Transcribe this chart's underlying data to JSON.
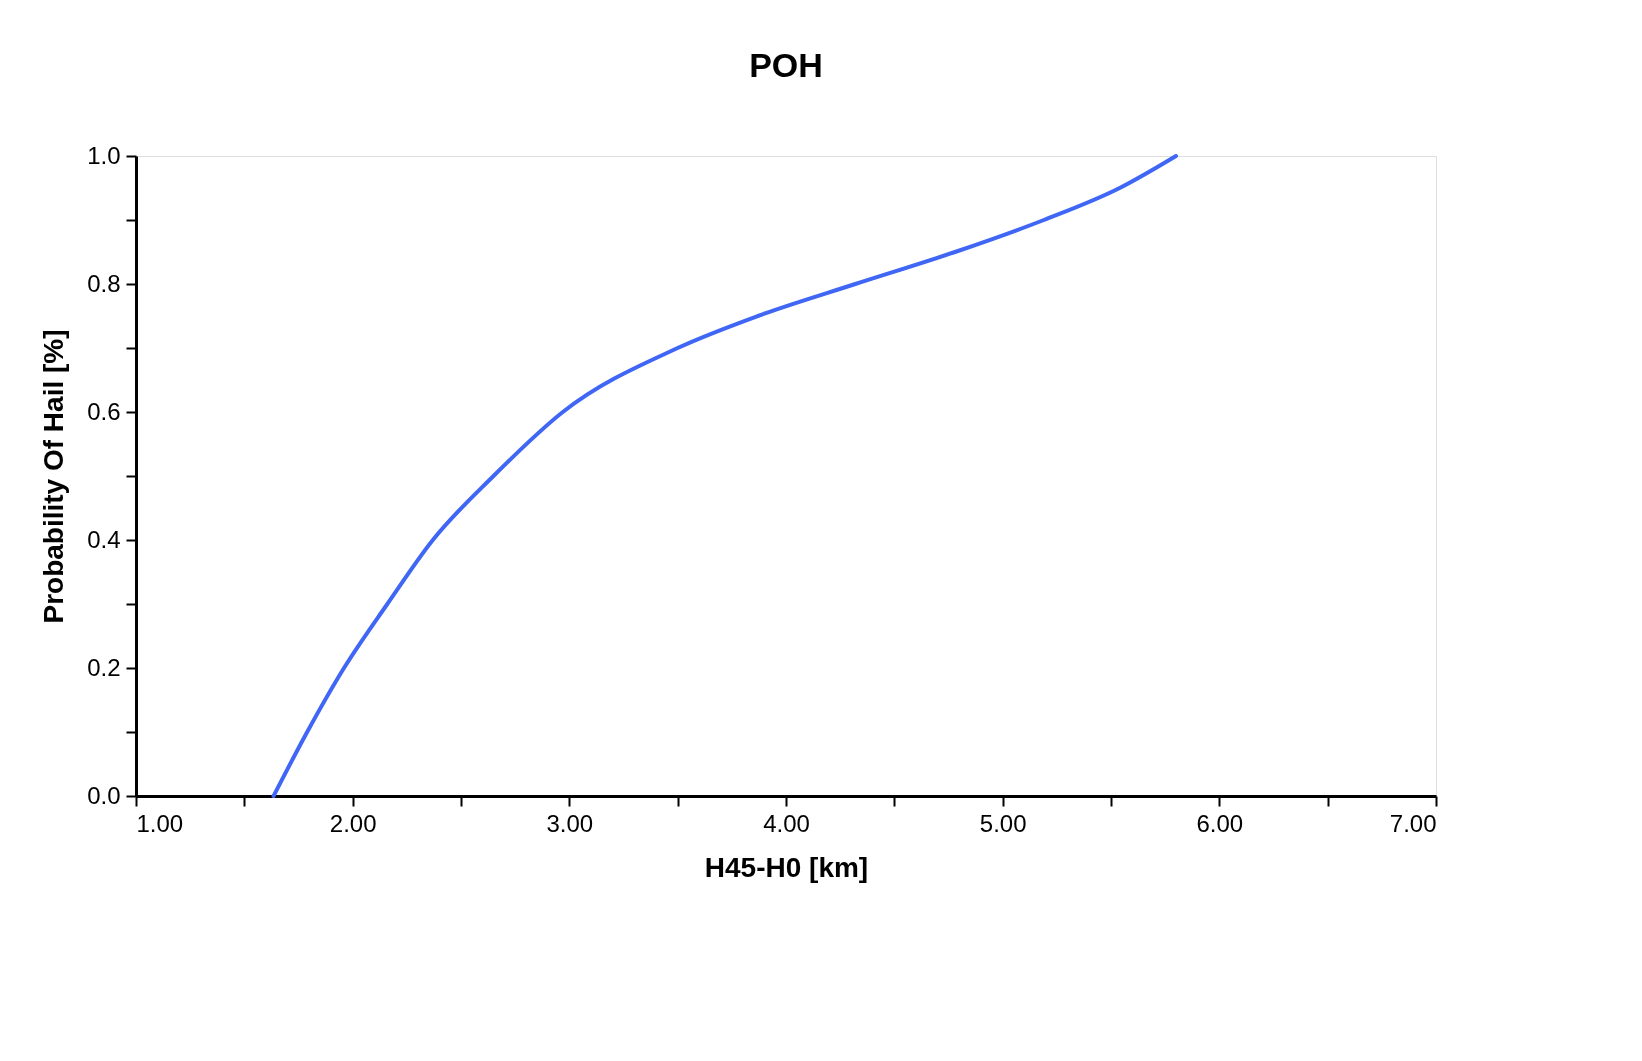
{
  "chart_data": {
    "type": "line",
    "title": "POH",
    "xlabel": "H45-H0 [km]",
    "ylabel": "Probability Of Hail [%]",
    "x": [
      1.635,
      1.79,
      1.96,
      2.16,
      2.37,
      2.65,
      2.97,
      3.5,
      3.87,
      4.32,
      4.78,
      5.19,
      5.54,
      5.8
    ],
    "series": [
      {
        "color": "#3f66f5",
        "values": [
          0.0,
          0.1,
          0.2,
          0.3,
          0.4,
          0.5,
          0.6,
          0.7,
          0.75,
          0.8,
          0.85,
          0.9,
          0.95,
          1.0
        ]
      }
    ],
    "xlim": [
      1,
      7
    ],
    "ylim": [
      0,
      1
    ],
    "xticks": [
      {
        "value": 1,
        "label": "1.00"
      },
      {
        "value": 1.5,
        "label": null
      },
      {
        "value": 2,
        "label": "2.00"
      },
      {
        "value": 2.5,
        "label": null
      },
      {
        "value": 3,
        "label": "3.00"
      },
      {
        "value": 3.5,
        "label": null
      },
      {
        "value": 4,
        "label": "4.00"
      },
      {
        "value": 4.5,
        "label": null
      },
      {
        "value": 5,
        "label": "5.00"
      },
      {
        "value": 5.5,
        "label": null
      },
      {
        "value": 6,
        "label": "6.00"
      },
      {
        "value": 6.5,
        "label": null
      },
      {
        "value": 7,
        "label": "7.00"
      }
    ],
    "yticks": [
      {
        "value": 0,
        "label": "0.0"
      },
      {
        "value": 0.1,
        "label": null
      },
      {
        "value": 0.2,
        "label": "0.2"
      },
      {
        "value": 0.3,
        "label": null
      },
      {
        "value": 0.4,
        "label": "0.4"
      },
      {
        "value": 0.5,
        "label": null
      },
      {
        "value": 0.6,
        "label": "0.6"
      },
      {
        "value": 0.7,
        "label": null
      },
      {
        "value": 0.8,
        "label": "0.8"
      },
      {
        "value": 0.9,
        "label": null
      },
      {
        "value": 1,
        "label": "1.0"
      }
    ],
    "grid": false
  }
}
